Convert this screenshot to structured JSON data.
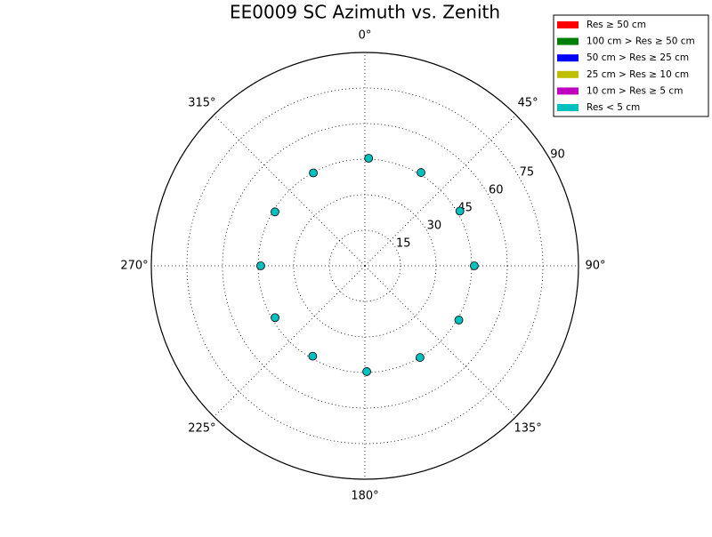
{
  "chart_data": {
    "type": "polar-scatter",
    "title": "EE0009 SC Azimuth vs. Zenith",
    "series": [
      {
        "name": "Res ≥ 50 cm",
        "color": "#ff0000",
        "x": [],
        "values": []
      },
      {
        "name": "100 cm > Res ≥ 50 cm",
        "color": "#008000",
        "x": [],
        "values": []
      },
      {
        "name": "50 cm > Res ≥ 25 cm",
        "color": "#0000ff",
        "x": [],
        "values": []
      },
      {
        "name": "25 cm > Res ≥ 10 cm",
        "color": "#bfbf00",
        "x": [],
        "values": []
      },
      {
        "name": "10 cm > Res ≥ 5 cm",
        "color": "#bf00bf",
        "x": [],
        "values": []
      },
      {
        "name": "Res < 5 cm",
        "color": "#00bfbf",
        "x": [
          2,
          31,
          60,
          90,
          120,
          149,
          179,
          210,
          240,
          270,
          301,
          331
        ],
        "values": [
          45.4,
          45.9,
          46.2,
          46.1,
          45.7,
          45.1,
          44.6,
          44,
          43.7,
          43.9,
          44.2,
          44.8
        ]
      }
    ],
    "xlim": [
      0,
      360
    ],
    "xticks": [
      {
        "value": 0,
        "label": "0°"
      },
      {
        "value": 45,
        "label": "45°"
      },
      {
        "value": 90,
        "label": "90°"
      },
      {
        "value": 135,
        "label": "135°"
      },
      {
        "value": 180,
        "label": "180°"
      },
      {
        "value": 225,
        "label": "225°"
      },
      {
        "value": 270,
        "label": "270°"
      },
      {
        "value": 315,
        "label": "315°"
      }
    ],
    "ylim": [
      0,
      90
    ],
    "yticks": [
      15,
      30,
      45,
      60,
      75,
      90
    ],
    "grid": true,
    "legend": "upper right"
  }
}
